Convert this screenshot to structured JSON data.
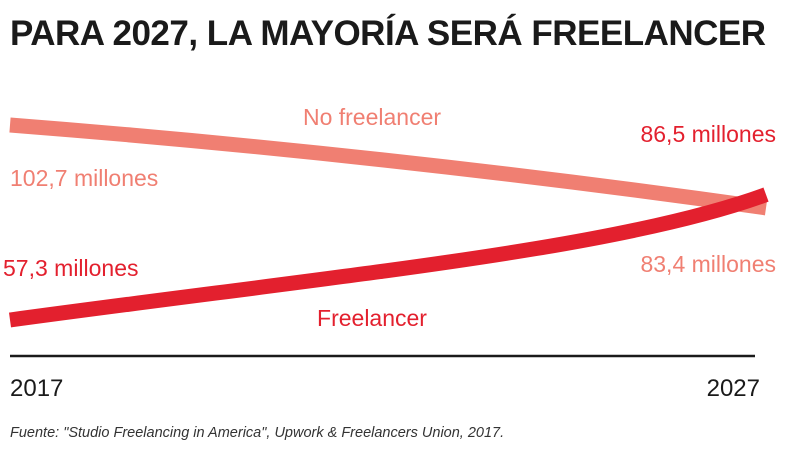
{
  "title": "PARA 2027, LA MAYORÍA SERÁ FREELANCER",
  "source": "Fuente: \"Studio Freelancing in America\", Upwork & Freelancers Union, 2017.",
  "chart_data": {
    "type": "line",
    "x": [
      2017,
      2027
    ],
    "xlim": [
      2017,
      2027
    ],
    "ylim": [
      50,
      110
    ],
    "tick_labels": [
      "2017",
      "2027"
    ],
    "grid": false,
    "series": [
      {
        "name": "No freelancer",
        "values": [
          102.7,
          83.4
        ],
        "start_label": "102,7 millones",
        "end_label": "83,4 millones",
        "color": "#f07f72"
      },
      {
        "name": "Freelancer",
        "values": [
          57.3,
          86.5
        ],
        "start_label": "57,3 millones",
        "end_label": "86,5 millones",
        "color": "#e3202e"
      }
    ]
  }
}
